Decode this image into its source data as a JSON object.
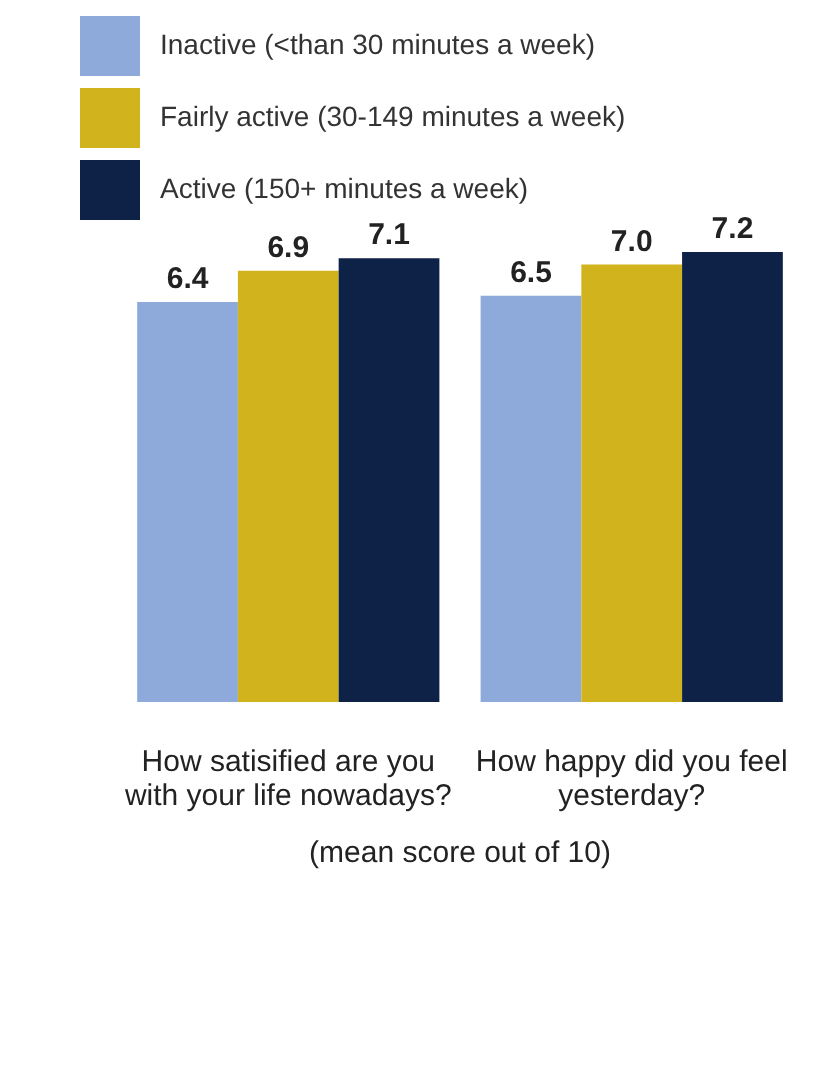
{
  "chart_data": {
    "type": "bar",
    "categories": [
      "How satisified are you with your life nowadays?",
      "How happy did you feel yesterday?"
    ],
    "series": [
      {
        "name": "Inactive (<than 30 minutes a week)",
        "color": "#8eaadb",
        "values": [
          6.4,
          6.5
        ],
        "value_labels": [
          "6.4",
          "6.5"
        ]
      },
      {
        "name": "Fairly active (30-149 minutes a week)",
        "color": "#d1b31e",
        "values": [
          6.9,
          7.0
        ],
        "value_labels": [
          "6.9",
          "7.0"
        ]
      },
      {
        "name": "Active (150+ minutes a week)",
        "color": "#0e2147",
        "values": [
          7.1,
          7.2
        ],
        "value_labels": [
          "7.1",
          "7.2"
        ]
      }
    ],
    "relative": false,
    "legend": "top left",
    "grid": false,
    "annotations": [
      "(mean score out of 10)"
    ]
  }
}
